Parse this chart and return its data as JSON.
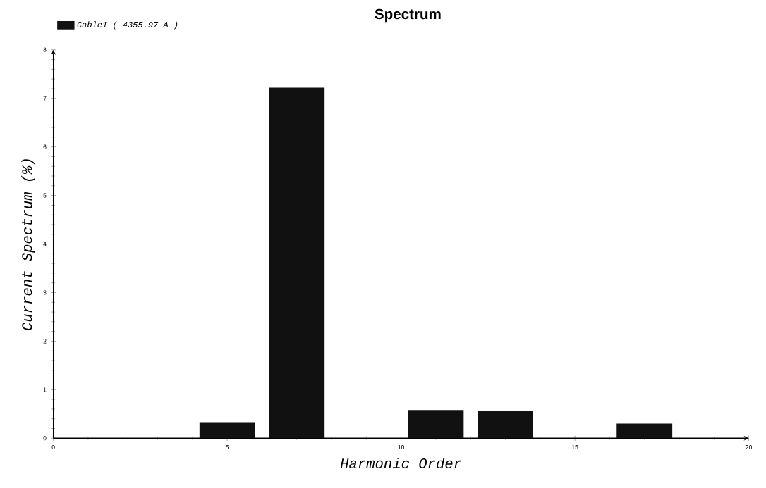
{
  "chart_data": {
    "type": "bar",
    "title": "Spectrum",
    "xlabel": "Harmonic Order",
    "ylabel": "Current Spectrum (%)",
    "x": [
      5,
      7,
      11,
      13,
      17
    ],
    "series": [
      {
        "name": "Cable1 ( 4355.97 A )",
        "color": "#111111",
        "values": [
          0.33,
          7.22,
          0.58,
          0.57,
          0.3
        ]
      }
    ],
    "xlim": [
      0,
      20
    ],
    "ylim": [
      0,
      8
    ],
    "xticks": [
      0,
      5,
      10,
      15,
      20
    ],
    "yticks": [
      0,
      1,
      2,
      3,
      4,
      5,
      6,
      7,
      8
    ],
    "grid": false,
    "legend": "top left"
  }
}
